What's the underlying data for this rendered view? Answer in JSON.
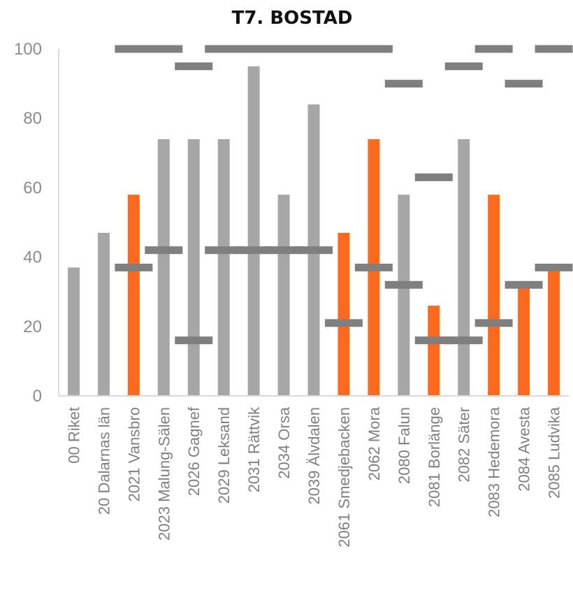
{
  "chart_data": {
    "type": "bar",
    "title": "T7. BOSTAD",
    "xlabel": "",
    "ylabel": "",
    "ylim": [
      0,
      100
    ],
    "yticks": [
      0,
      20,
      40,
      60,
      80,
      100
    ],
    "grid": false,
    "legend": "none",
    "categories": [
      "00 Riket",
      "20 Dalarnas län",
      "2021 Vansbro",
      "2023 Malung-Sälen",
      "2026 Gagnef",
      "2029 Leksand",
      "2031 Rättvik",
      "2034 Orsa",
      "2039 Älvdalen",
      "2061 Smedjebacken",
      "2062 Mora",
      "2080 Falun",
      "2081 Borlänge",
      "2082 Säter",
      "2083 Hedemora",
      "2084 Avesta",
      "2085 Ludvika"
    ],
    "series": [
      {
        "type": "bar",
        "values": [
          37,
          47,
          58,
          74,
          74,
          74,
          95,
          58,
          84,
          47,
          74,
          58,
          26,
          74,
          58,
          31,
          37
        ]
      },
      {
        "type": "marker",
        "values": [
          null,
          null,
          37,
          42,
          16,
          42,
          42,
          42,
          42,
          21,
          37,
          32,
          16,
          16,
          21,
          32,
          37
        ]
      },
      {
        "type": "marker",
        "values": [
          null,
          null,
          100,
          100,
          95,
          100,
          100,
          100,
          100,
          100,
          100,
          90,
          63,
          95,
          100,
          90,
          100
        ]
      }
    ],
    "highlighted": [
      false,
      false,
      true,
      false,
      false,
      false,
      false,
      false,
      false,
      true,
      true,
      false,
      true,
      false,
      true,
      true,
      true
    ],
    "colors": {
      "bar_default": "#a6a6a6",
      "bar_highlight": "#fd6a1e",
      "marker": "#7f7f7f",
      "axis": "#d9d9d9"
    }
  }
}
